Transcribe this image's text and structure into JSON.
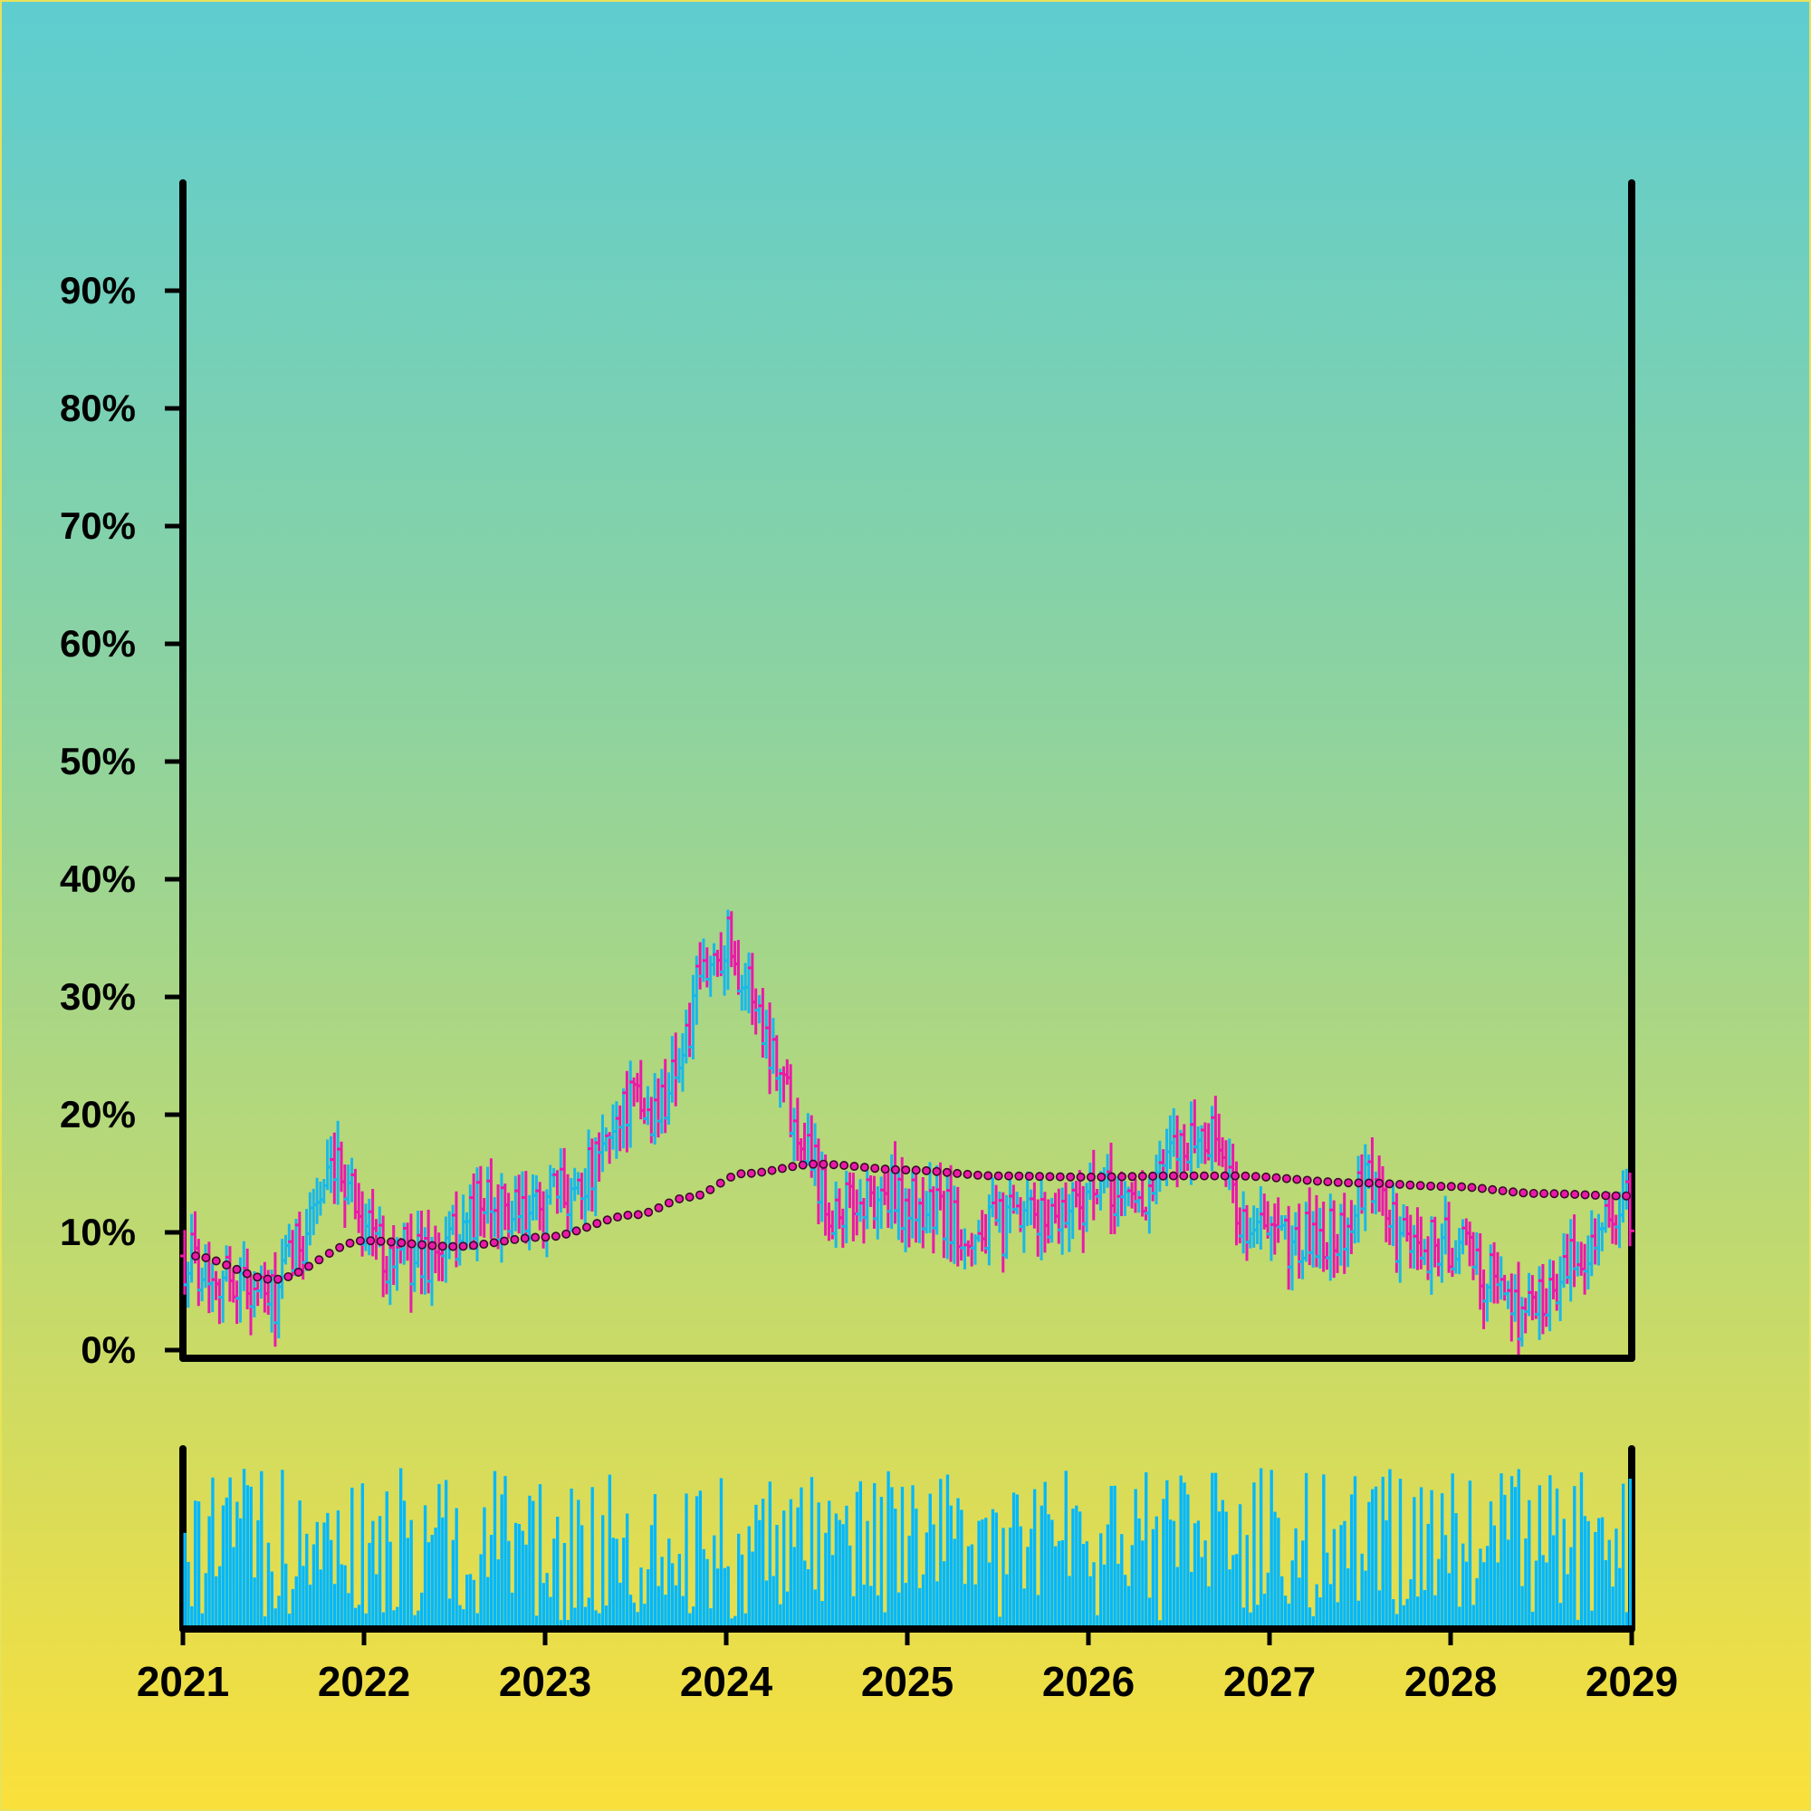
{
  "chart_data": [
    {
      "type": "ohlc",
      "title": "",
      "xlabel": "",
      "ylabel": "",
      "ylim": [
        0,
        100
      ],
      "yticks": [
        0,
        10,
        20,
        30,
        40,
        50,
        60,
        70,
        80,
        90
      ],
      "ytick_labels": [
        "0%",
        "10%",
        "20%",
        "30%",
        "40%",
        "50%",
        "60%",
        "70%",
        "80%",
        "90%"
      ],
      "xlim": [
        2021,
        2029
      ],
      "xticks": [
        2021,
        2022,
        2023,
        2024,
        2025,
        2026,
        2027,
        2028,
        2029
      ],
      "xtick_labels": [
        "2021",
        "2022",
        "2023",
        "2024",
        "2025",
        "2026",
        "2027",
        "2028",
        "2029"
      ],
      "frequency": "weekly",
      "up_color": "#1ab8e8",
      "down_color": "#ea1aa8",
      "trend_anchors": [
        [
          2021.05,
          8
        ],
        [
          2021.5,
          6
        ],
        [
          2022.0,
          9.3
        ],
        [
          2022.5,
          8.8
        ],
        [
          2023.0,
          9.6
        ],
        [
          2023.5,
          11.5
        ],
        [
          2023.8,
          13
        ],
        [
          2024.1,
          15
        ],
        [
          2024.5,
          15.8
        ],
        [
          2025.0,
          15.3
        ],
        [
          2025.5,
          14.8
        ],
        [
          2026.0,
          14.7
        ],
        [
          2026.5,
          14.8
        ],
        [
          2026.8,
          14.8
        ],
        [
          2027.5,
          14.2
        ],
        [
          2028.0,
          13.9
        ],
        [
          2028.5,
          13.3
        ],
        [
          2028.97,
          13.1
        ]
      ],
      "price_anchors": [
        [
          2021.0,
          8
        ],
        [
          2021.3,
          6
        ],
        [
          2021.5,
          4
        ],
        [
          2021.6,
          8
        ],
        [
          2021.75,
          13
        ],
        [
          2021.9,
          15
        ],
        [
          2022.0,
          11
        ],
        [
          2022.15,
          8
        ],
        [
          2022.4,
          8
        ],
        [
          2022.65,
          12
        ],
        [
          2022.9,
          11
        ],
        [
          2023.05,
          13
        ],
        [
          2023.25,
          15
        ],
        [
          2023.45,
          21
        ],
        [
          2023.6,
          20
        ],
        [
          2023.75,
          25
        ],
        [
          2023.88,
          32
        ],
        [
          2024.0,
          35
        ],
        [
          2024.12,
          31
        ],
        [
          2024.25,
          26
        ],
        [
          2024.4,
          19
        ],
        [
          2024.6,
          12
        ],
        [
          2024.85,
          13
        ],
        [
          2025.1,
          12
        ],
        [
          2025.4,
          10
        ],
        [
          2025.7,
          11
        ],
        [
          2026.0,
          13
        ],
        [
          2026.3,
          13
        ],
        [
          2026.55,
          18
        ],
        [
          2026.7,
          18
        ],
        [
          2026.85,
          11
        ],
        [
          2027.1,
          9
        ],
        [
          2027.4,
          10
        ],
        [
          2027.55,
          14
        ],
        [
          2027.75,
          9
        ],
        [
          2028.0,
          9
        ],
        [
          2028.25,
          6
        ],
        [
          2028.4,
          3
        ],
        [
          2028.6,
          6
        ],
        [
          2028.8,
          10
        ],
        [
          2028.97,
          12
        ]
      ],
      "trend_series": "dotted moving-average line, magenta points with dark outline"
    },
    {
      "type": "bar",
      "title": "",
      "xlabel": "",
      "ylabel": "",
      "series_name": "",
      "color": "#00b8ff",
      "frequency": "weekly",
      "value_range_relative": [
        0.05,
        0.92
      ]
    }
  ]
}
